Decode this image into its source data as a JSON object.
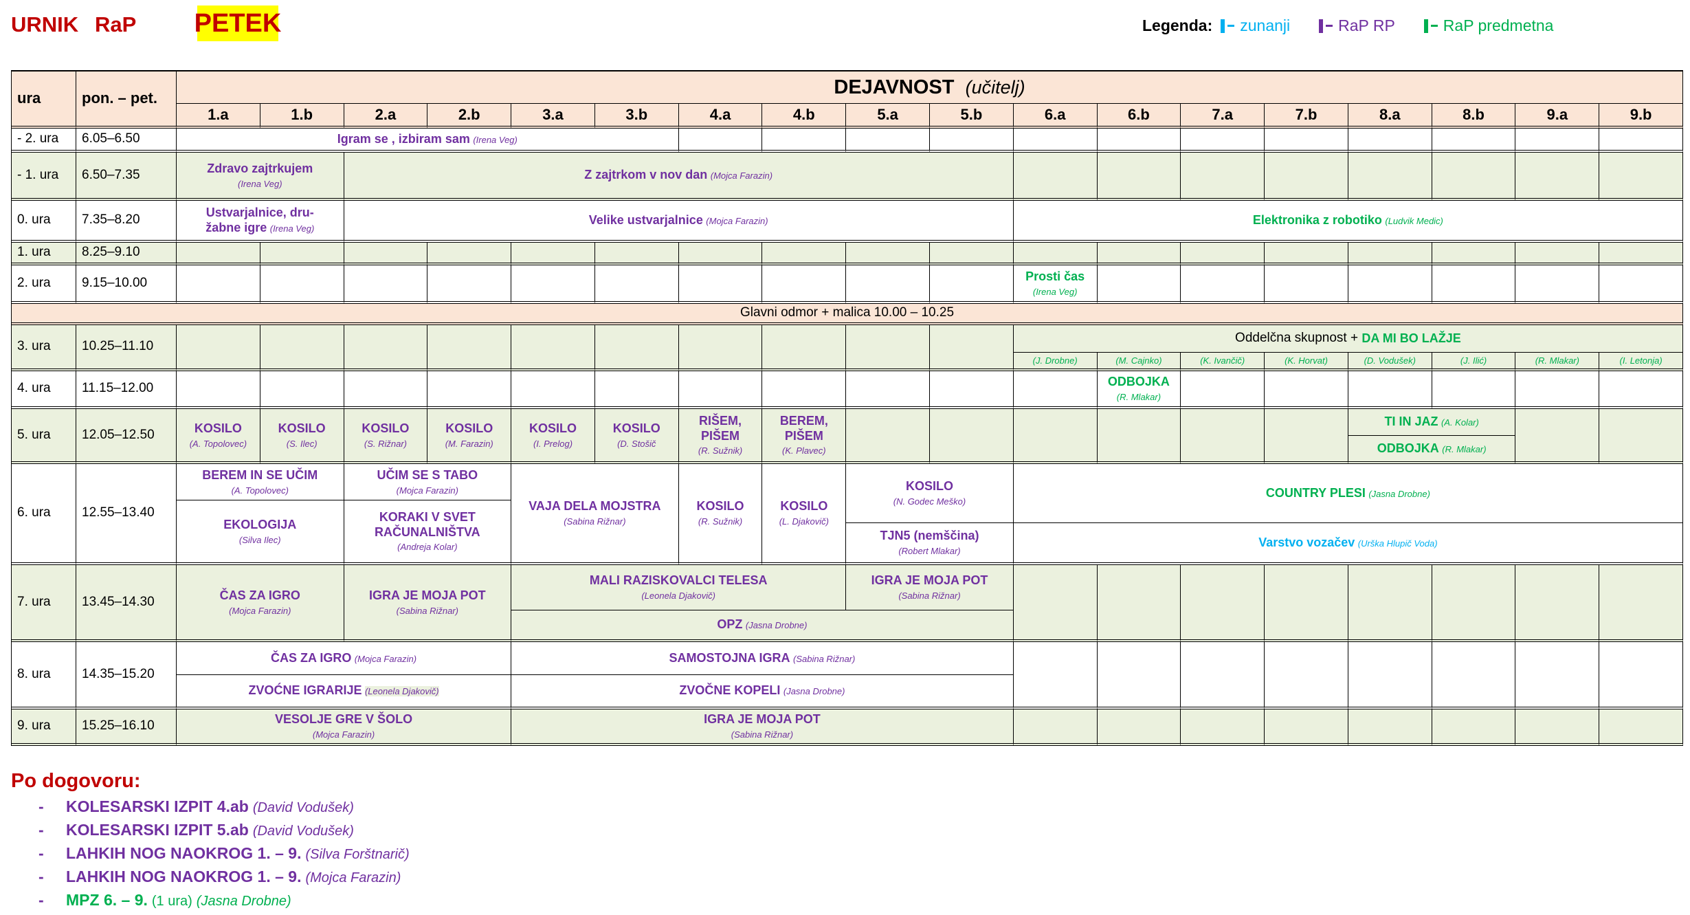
{
  "header": {
    "urnik": "URNIK",
    "rap": "RaP",
    "day": "PETEK"
  },
  "legend": {
    "label": "Legenda:",
    "items": [
      {
        "label": "zunanji",
        "color": "#00b0f0"
      },
      {
        "label": "RaP RP",
        "color": "#7030a0"
      },
      {
        "label": "RaP predmetna",
        "color": "#00b050"
      }
    ]
  },
  "colors": {
    "title": "#c00000",
    "highlight": "#ffff00",
    "header_bg": "#fbe5d6",
    "green_row_bg": "#ebf1de",
    "zunanji": "#00b0f0",
    "rap_rp": "#7030a0",
    "rap_predmetna": "#00b050"
  },
  "table": {
    "col_ura": "ura",
    "col_time": "pon. – pet.",
    "activity_header": "DEJAVNOST",
    "activity_sub": "(učitelj)",
    "classes": [
      "1.a",
      "1.b",
      "2.a",
      "2.b",
      "3.a",
      "3.b",
      "4.a",
      "4.b",
      "5.a",
      "5.b",
      "6.a",
      "6.b",
      "7.a",
      "7.b",
      "8.a",
      "8.b",
      "9.a",
      "9.b"
    ],
    "rows": [
      {
        "ura": "- 2. ura",
        "time": "6.05–6.50"
      },
      {
        "ura": "- 1. ura",
        "time": "6.50–7.35"
      },
      {
        "ura": "0. ura",
        "time": "7.35–8.20"
      },
      {
        "ura": "1. ura",
        "time": "8.25–9.10"
      },
      {
        "ura": "2. ura",
        "time": "9.15–10.00"
      },
      {
        "ura": "3. ura",
        "time": "10.25–11.10"
      },
      {
        "ura": "4. ura",
        "time": "11.15–12.00"
      },
      {
        "ura": "5. ura",
        "time": "12.05–12.50"
      },
      {
        "ura": "6. ura",
        "time": "12.55–13.40"
      },
      {
        "ura": "7. ura",
        "time": "13.45–14.30"
      },
      {
        "ura": "8. ura",
        "time": "14.35–15.20"
      },
      {
        "ura": "9. ura",
        "time": "15.25–16.10"
      }
    ],
    "break": "Glavni odmor + malica 10.00 – 10.25",
    "oddelcna": {
      "prefix": "Oddelčna skupnost +",
      "title": "DA MI BO LAŽJE"
    },
    "class_teachers": [
      "(J. Drobne)",
      "(M. Cajnko)",
      "(K. Ivančič)",
      "(K. Horvat)",
      "(D. Vodušek)",
      "(J. Ilić)",
      "(R. Mlakar)",
      "(I. Letonja)"
    ],
    "activities": {
      "igram": {
        "title": "Igram se , izbiram sam",
        "teacher": "(Irena Veg)",
        "type": "rap_rp"
      },
      "zdravo": {
        "title": "Zdravo zajtrkujem",
        "teacher": "(Irena Veg)",
        "type": "rap_rp"
      },
      "zajtrkom": {
        "title": "Z zajtrkom v nov dan",
        "teacher": "(Mojca Farazin)",
        "type": "rap_rp"
      },
      "ustvarjalnice": {
        "title": "Ustvarjalnice, dru-\nžabne igre",
        "teacher": "(Irena Veg)",
        "type": "rap_rp"
      },
      "velike": {
        "title": "Velike ustvarjalnice",
        "teacher": "(Mojca Farazin)",
        "type": "rap_rp"
      },
      "elektronika": {
        "title": "Elektronika z robotiko",
        "teacher": "(Ludvik Medic)",
        "type": "rap_predmetna"
      },
      "prosti": {
        "title": "Prosti čas",
        "teacher": "(Irena Veg)",
        "type": "rap_predmetna"
      },
      "odbojka4": {
        "title": "ODBOJKA",
        "teacher": "(R. Mlakar)",
        "type": "rap_predmetna"
      },
      "kosilo1a": {
        "title": "KOSILO",
        "teacher": "(A. Topolovec)",
        "type": "rap_rp"
      },
      "kosilo1b": {
        "title": "KOSILO",
        "teacher": "(S. Ilec)",
        "type": "rap_rp"
      },
      "kosilo2a": {
        "title": "KOSILO",
        "teacher": "(S. Rižnar)",
        "type": "rap_rp"
      },
      "kosilo2b": {
        "title": "KOSILO",
        "teacher": "(M. Farazin)",
        "type": "rap_rp"
      },
      "kosilo3a": {
        "title": "KOSILO",
        "teacher": "(I. Prelog)",
        "type": "rap_rp"
      },
      "kosilo3b": {
        "title": "KOSILO",
        "teacher": "(D. Stošič",
        "type": "rap_rp"
      },
      "risem": {
        "title": "RIŠEM, PIŠEM",
        "teacher": "(R. Sužnik)",
        "type": "rap_rp"
      },
      "berem": {
        "title": "BEREM, PIŠEM",
        "teacher": "(K. Plavec)",
        "type": "rap_rp"
      },
      "tiinjaz": {
        "title": "TI IN JAZ",
        "teacher": "(A. Kolar)",
        "type": "rap_predmetna"
      },
      "odbojka5": {
        "title": "ODBOJKA",
        "teacher": "(R. Mlakar)",
        "type": "rap_predmetna"
      },
      "beremucim": {
        "title": "BEREM IN SE UČIM",
        "teacher": "(A. Topolovec)",
        "type": "rap_rp"
      },
      "ekologija": {
        "title": "EKOLOGIJA",
        "teacher": "(Silva Ilec)",
        "type": "rap_rp"
      },
      "ucimtabo": {
        "title": "UČIM SE S TABO",
        "teacher": "(Mojca Farazin)",
        "type": "rap_rp"
      },
      "koraki": {
        "title": "KORAKI V SVET RAČUNALNIŠTVA",
        "teacher": "(Andreja Kolar)",
        "type": "rap_rp"
      },
      "vaja": {
        "title": "VAJA DELA MOJSTRA",
        "teacher": "(Sabina Rižnar)",
        "type": "rap_rp"
      },
      "kosilo4a": {
        "title": "KOSILO",
        "teacher": "(R. Sužnik)",
        "type": "rap_rp"
      },
      "kosilo4b": {
        "title": "KOSILO",
        "teacher": "(L. Djakovič)",
        "type": "rap_rp"
      },
      "kosilo5": {
        "title": "KOSILO",
        "teacher": "(N. Godec Meško)",
        "type": "rap_rp"
      },
      "tjn5": {
        "title": "TJN5 (nemščina)",
        "teacher": "(Robert Mlakar)",
        "type": "rap_rp"
      },
      "country": {
        "title": "COUNTRY  PLESI",
        "teacher": "(Jasna Drobne)",
        "type": "rap_predmetna"
      },
      "varstvo": {
        "title": "Varstvo vozačev",
        "teacher": "(Urška Hlupič Voda)",
        "type": "zunanji"
      },
      "caszaigro7": {
        "title": "ČAS ZA IGRO",
        "teacher": "(Mojca Farazin)",
        "type": "rap_rp"
      },
      "igra7": {
        "title": "IGRA JE MOJA POT",
        "teacher": "(Sabina Rižnar)",
        "type": "rap_rp"
      },
      "mali": {
        "title": "MALI RAZISKOVALCI TELESA",
        "teacher": "(Leonela Djakovič)",
        "type": "rap_rp"
      },
      "igra7b": {
        "title": "IGRA JE MOJA POT",
        "teacher": "(Sabina Rižnar)",
        "type": "rap_rp"
      },
      "opz": {
        "title": "OPZ",
        "teacher": "(Jasna Drobne)",
        "type": "rap_rp"
      },
      "caszaigro8": {
        "title": "ČAS ZA IGRO",
        "teacher": "(Mojca Farazin)",
        "type": "rap_rp"
      },
      "samostojna": {
        "title": "SAMOSTOJNA IGRA",
        "teacher": "(Sabina Rižnar)",
        "type": "rap_rp"
      },
      "zvocneig": {
        "title": "ZVOĆNE IGRARIJE",
        "teacher": "(Leonela Djakovič)",
        "type": "rap_rp"
      },
      "zvocnekop": {
        "title": "ZVOČNE KOPELI",
        "teacher": "(Jasna Drobne)",
        "type": "rap_rp"
      },
      "vesolje": {
        "title": "VESOLJE GRE V ŠOLO",
        "teacher": "(Mojca Farazin)",
        "type": "rap_rp"
      },
      "igra9": {
        "title": "IGRA JE MOJA POT",
        "teacher": "(Sabina Rižnar)",
        "type": "rap_rp"
      }
    }
  },
  "po_dogovoru": {
    "heading": "Po dogovoru:",
    "bullet": "-",
    "items": [
      {
        "title": "KOLESARSKI IZPIT 4.ab",
        "extra": "",
        "teacher": "(David Vodušek)",
        "type": "rap_rp"
      },
      {
        "title": "KOLESARSKI IZPIT 5.ab",
        "extra": "",
        "teacher": "(David Vodušek)",
        "type": "rap_rp"
      },
      {
        "title": "LAHKIH NOG NAOKROG 1. – 9.",
        "extra": "",
        "teacher": "(Silva Forštnarič)",
        "type": "rap_rp"
      },
      {
        "title": "LAHKIH NOG NAOKROG 1. – 9.",
        "extra": "",
        "teacher": "(Mojca Farazin)",
        "type": "rap_rp"
      },
      {
        "title": "MPZ 6. – 9.",
        "extra": "(1 ura)",
        "teacher": "(Jasna Drobne)",
        "type": "rap_predmetna"
      }
    ]
  }
}
